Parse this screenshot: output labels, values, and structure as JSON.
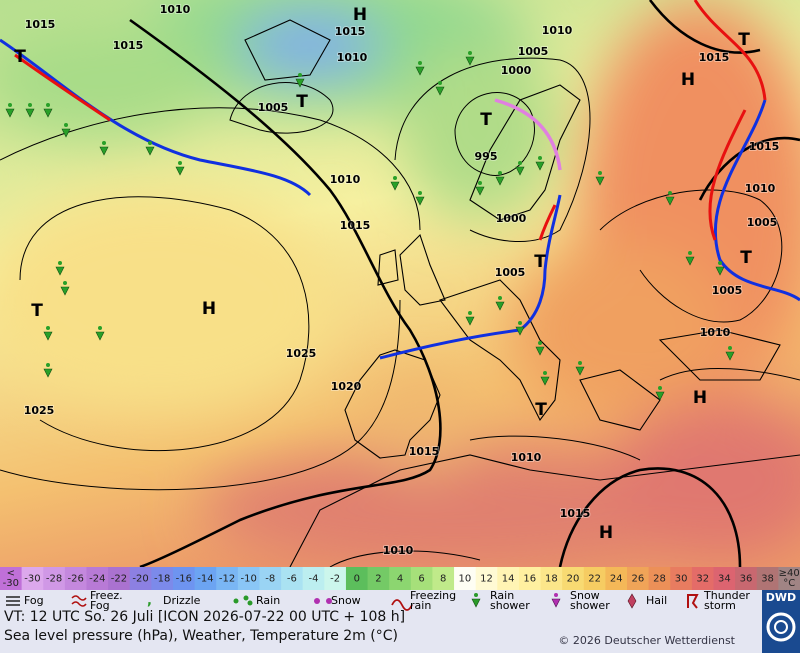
{
  "map": {
    "pressure_labels": [
      1015,
      1010,
      1015,
      1015,
      1010,
      1005,
      1010,
      1000,
      1015,
      1005,
      995,
      1010,
      1015,
      1000,
      1005,
      1015,
      1010,
      1005,
      1005,
      1010,
      1025,
      1020,
      1025,
      1015,
      1010,
      1015,
      1010
    ],
    "pressure_systems": [
      "H",
      "T",
      "T",
      "T",
      "H",
      "T",
      "T",
      "H",
      "T",
      "T",
      "H",
      "T",
      "H"
    ]
  },
  "temperature_scale": {
    "below": [
      "<",
      "-30"
    ],
    "labels": [
      -30,
      -28,
      -26,
      -24,
      -22,
      -20,
      -18,
      -16,
      -14,
      -12,
      -10,
      -8,
      -6,
      -4,
      -2,
      0,
      2,
      4,
      6,
      8,
      10,
      12,
      14,
      16,
      18,
      20,
      22,
      24,
      26,
      28,
      30,
      32,
      34,
      36,
      38
    ],
    "above": [
      "≥40",
      "°C"
    ],
    "colors": [
      "#c070d8",
      "#dca8ec",
      "#d098e6",
      "#c488de",
      "#b87ad6",
      "#aa72d0",
      "#8c80e2",
      "#7c8aea",
      "#6e94f0",
      "#6ca4f2",
      "#7ab6f4",
      "#8ac6f6",
      "#9ad4f4",
      "#aae2f2",
      "#bceef0",
      "#ccf6ec",
      "#5cbe5c",
      "#74ca66",
      "#8cd670",
      "#a6e07a",
      "#c0ea8a",
      "#fefef4",
      "#fffad4",
      "#fff4b4",
      "#fff0a0",
      "#fce68a",
      "#f8da72",
      "#f6cc62",
      "#f4b858",
      "#f0a458",
      "#ec9058",
      "#e87c60",
      "#e46c68",
      "#dc6470",
      "#c86870",
      "#b07474",
      "#a08484"
    ]
  },
  "weather_legend": [
    [
      "Fog"
    ],
    [
      "Freez.",
      "Fog"
    ],
    [
      "Drizzle"
    ],
    [
      "Rain"
    ],
    [
      "Snow"
    ],
    [
      "Freezing",
      "rain"
    ],
    [
      "Rain",
      "shower"
    ],
    [
      "Snow",
      "shower"
    ],
    [
      "Hail"
    ],
    [
      "Thunder",
      "storm"
    ]
  ],
  "footer": {
    "valid_time": "VT: 12 UTC So.  26 Juli [ICON 2026-07-22  00 UTC + 108 h]",
    "description": "Sea level pressure (hPa), Weather, Temperature 2m (°C)",
    "copyright": "© 2026 Deutscher Wetterdienst",
    "logo": "DWD"
  }
}
